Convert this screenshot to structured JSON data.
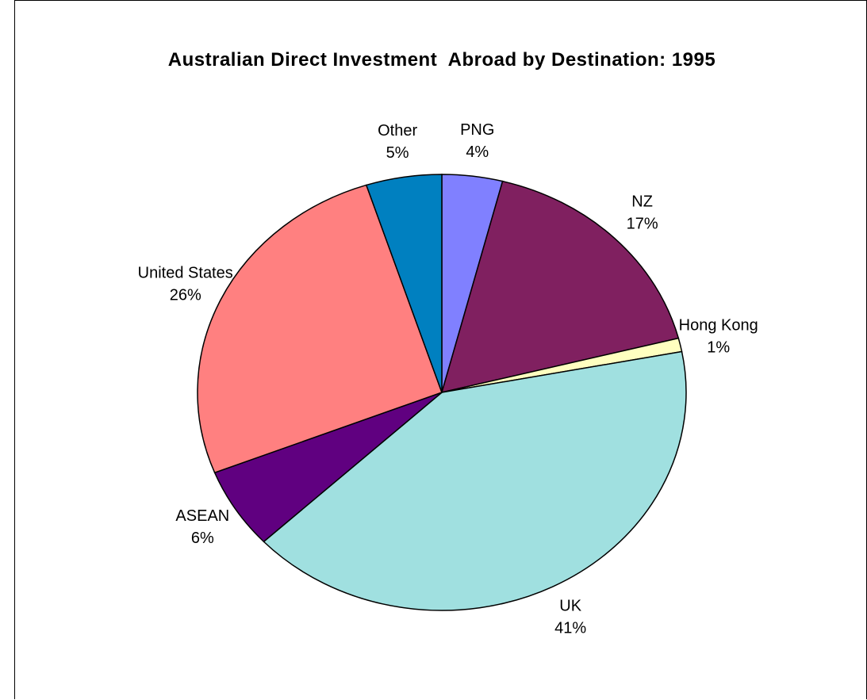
{
  "chart_data": {
    "type": "pie",
    "title": "Australian Direct Investment  Abroad by Destination: 1995",
    "categories": [
      "PNG",
      "NZ",
      "Hong Kong",
      "UK",
      "ASEAN",
      "United States",
      "Other"
    ],
    "values": [
      4,
      17,
      1,
      41,
      6,
      26,
      5
    ],
    "value_labels": [
      "4%",
      "17%",
      "1%",
      "41%",
      "6%",
      "26%",
      "5%"
    ],
    "colors": [
      "#8080ff",
      "#802060",
      "#ffffc0",
      "#a0e0e0",
      "#600080",
      "#ff8080",
      "#0080c0"
    ]
  }
}
